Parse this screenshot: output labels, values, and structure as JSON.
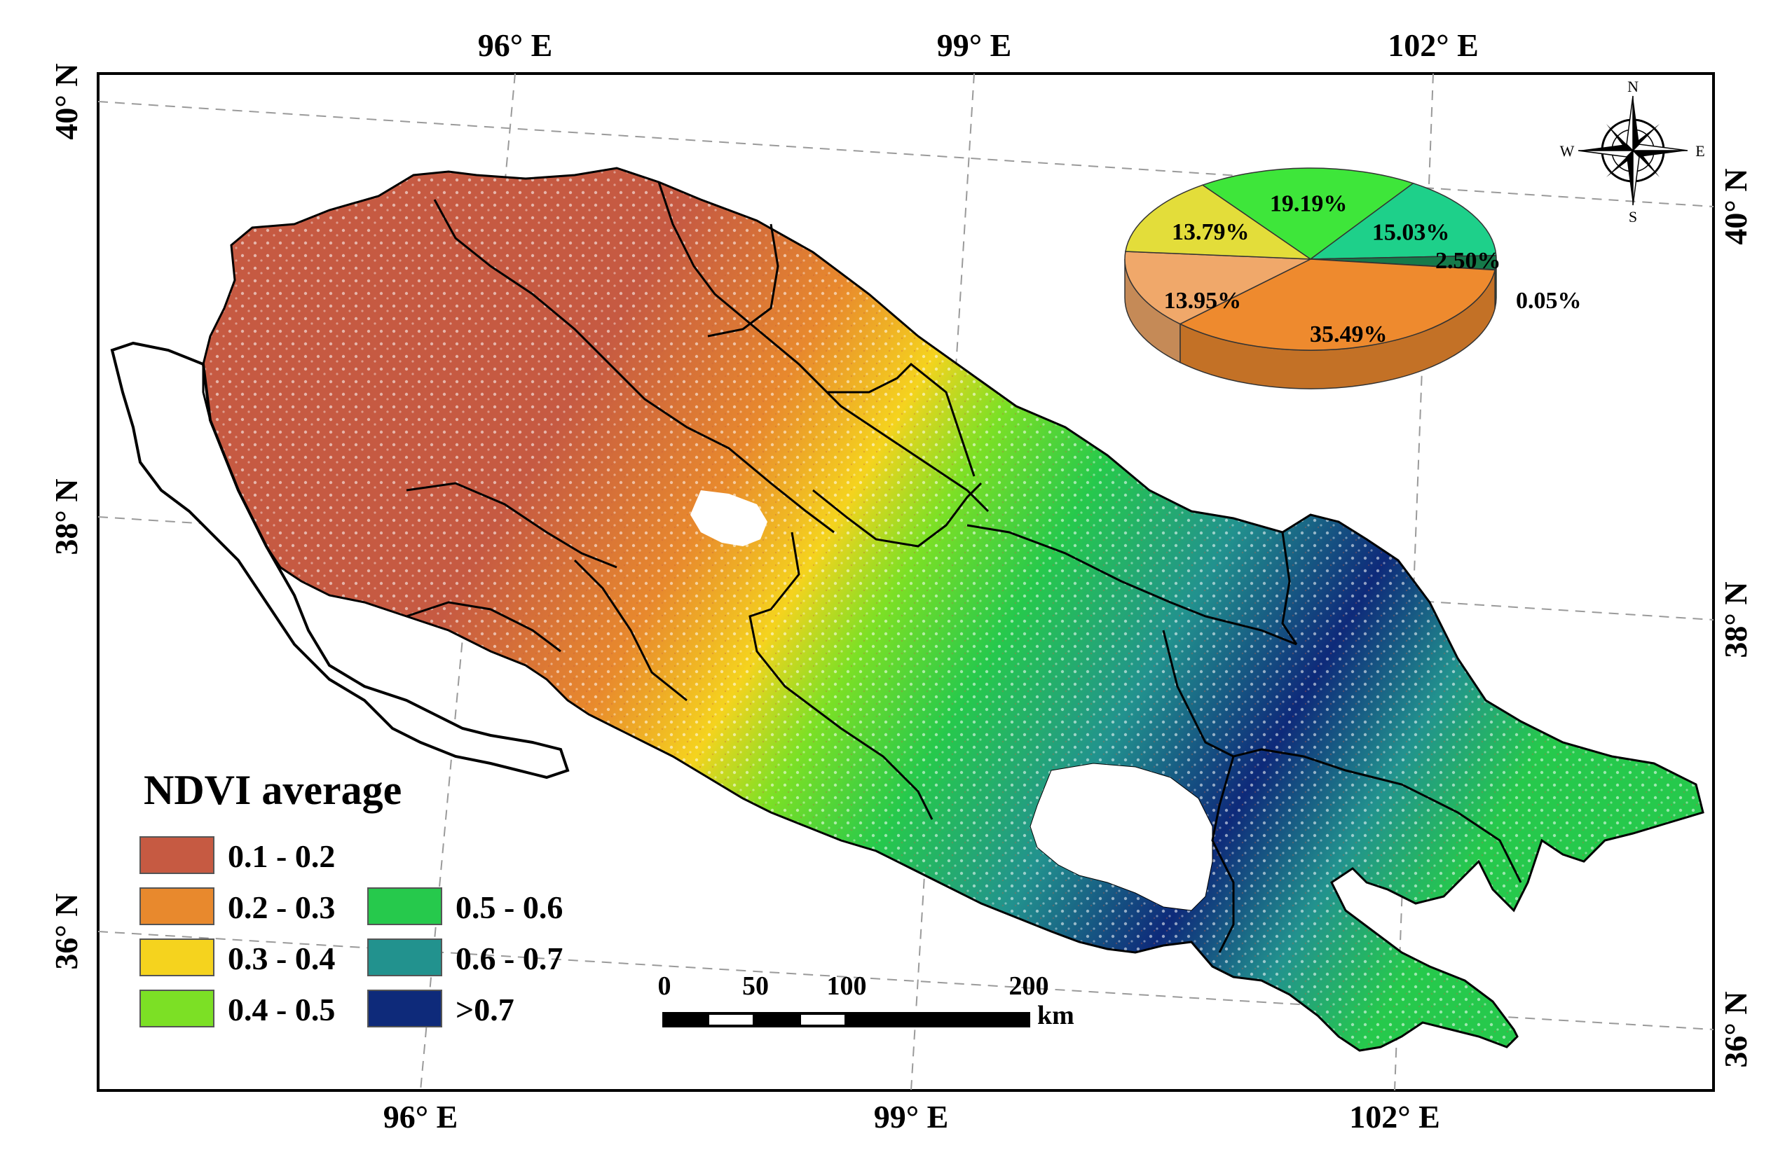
{
  "map": {
    "top_ticks": [
      "96° E",
      "99° E",
      "102° E"
    ],
    "bottom_ticks": [
      "96° E",
      "99° E",
      "102° E"
    ],
    "left_ticks": [
      "40° N",
      "38° N",
      "36° N"
    ],
    "right_ticks": [
      "40° N",
      "38° N",
      "36° N"
    ]
  },
  "legend": {
    "title": "NDVI average",
    "items": [
      {
        "label": "0.1 - 0.2",
        "color": "#c65a42"
      },
      {
        "label": "0.2 - 0.3",
        "color": "#e8892d"
      },
      {
        "label": "0.3 - 0.4",
        "color": "#f5d31e"
      },
      {
        "label": "0.4 - 0.5",
        "color": "#7ce025"
      },
      {
        "label": "0.5 - 0.6",
        "color": "#26c94c"
      },
      {
        "label": "0.6 - 0.7",
        "color": "#22928e"
      },
      {
        "label": ">0.7",
        "color": "#0e2a7a"
      }
    ]
  },
  "scale_bar": {
    "ticks": [
      "0",
      "50",
      "100",
      "200"
    ],
    "unit": "km"
  },
  "compass": {
    "n": "N",
    "s": "S",
    "e": "E",
    "w": "W"
  },
  "chart_data": {
    "type": "pie",
    "slices": [
      {
        "label": "19.19%",
        "value": 19.19,
        "color": "#3ee63a"
      },
      {
        "label": "15.03%",
        "value": 15.03,
        "color": "#1ed08a"
      },
      {
        "label": "2.50%",
        "value": 2.5,
        "color": "#157a4a"
      },
      {
        "label": "0.05%",
        "value": 0.05,
        "color": "#0e2a7a"
      },
      {
        "label": "35.49%",
        "value": 35.49,
        "color": "#ee8a2e"
      },
      {
        "label": "13.95%",
        "value": 13.95,
        "color": "#f0a86a"
      },
      {
        "label": "13.79%",
        "value": 13.79,
        "color": "#e3dd3a"
      }
    ]
  }
}
